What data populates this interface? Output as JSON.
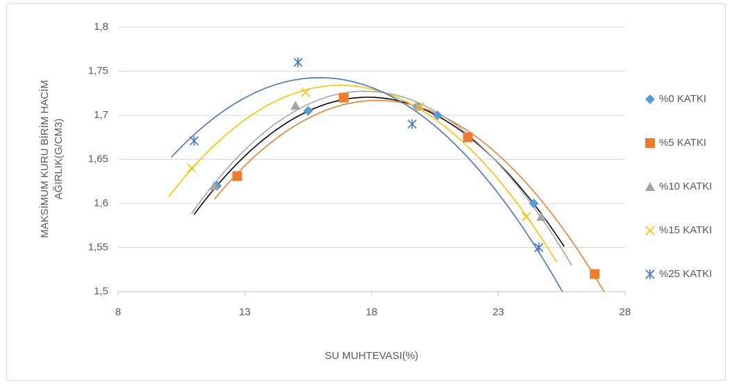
{
  "chart_data": {
    "type": "scatter",
    "x_label": "SU MUHTEVASI(%)",
    "y_label": [
      "MAKSİMUM KURU BİRİM HACİM",
      "AĞIRLIK(G/CM3)"
    ],
    "xlim": [
      8,
      28
    ],
    "xticks": [
      8,
      13,
      18,
      23,
      28
    ],
    "ylim": [
      1.5,
      1.8
    ],
    "yticks": [
      {
        "value": 1.5,
        "label": "1,5"
      },
      {
        "value": 1.55,
        "label": "1,55"
      },
      {
        "value": 1.6,
        "label": "1,6"
      },
      {
        "value": 1.65,
        "label": "1,65"
      },
      {
        "value": 1.7,
        "label": "1,7"
      },
      {
        "value": 1.75,
        "label": "1,75"
      },
      {
        "value": 1.8,
        "label": "1,8"
      }
    ],
    "grid": true,
    "legend": "right",
    "trendline": "polynomial",
    "series": [
      {
        "name": "%0 KATKI",
        "color": "#5b9bd5",
        "trend_color": "#000000",
        "marker": "diamond",
        "x": [
          11.9,
          15.5,
          19.8,
          20.6,
          21.8,
          24.4
        ],
        "values": [
          1.62,
          1.705,
          1.71,
          1.7,
          1.675,
          1.6
        ]
      },
      {
        "name": "%5 KATKI",
        "color": "#ed7d31",
        "trend_color": "#ed7d31",
        "marker": "square",
        "x": [
          12.7,
          16.9,
          21.8,
          26.8
        ],
        "values": [
          1.631,
          1.72,
          1.675,
          1.52
        ]
      },
      {
        "name": "%10 KATKI",
        "color": "#a5a5a5",
        "trend_color": "#a5a5a5",
        "marker": "triangle",
        "x": [
          11.8,
          15.0,
          19.8,
          24.7
        ],
        "values": [
          1.62,
          1.711,
          1.71,
          1.585
        ]
      },
      {
        "name": "%15 KATKI",
        "color": "#ffc000",
        "trend_color": "#ffc000",
        "marker": "x",
        "x": [
          10.9,
          15.4,
          19.9,
          24.1
        ],
        "values": [
          1.64,
          1.726,
          1.71,
          1.585
        ]
      },
      {
        "name": "%25 KATKI",
        "color": "#4472c4",
        "trend_color": "#4472c4",
        "marker": "asterisk",
        "x": [
          11.0,
          15.1,
          19.6,
          24.6
        ],
        "values": [
          1.671,
          1.76,
          1.69,
          1.55
        ]
      }
    ]
  }
}
